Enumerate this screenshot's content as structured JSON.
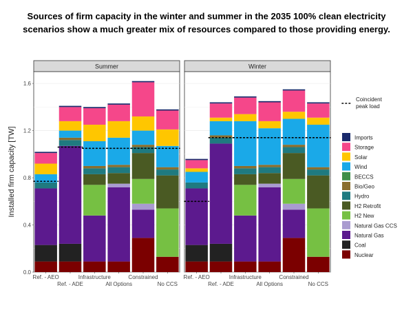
{
  "title": {
    "line1": "Sources of firm capacity in the winter and summer in the 2035 100% clean electricity",
    "line2": "scenarios show a much greater mix of resources compared to those providing energy."
  },
  "chart_data": {
    "type": "bar",
    "stacked": true,
    "ylabel": "Installed firm capacity [TW]",
    "ylim": [
      0,
      1.7
    ],
    "yticks": [
      "0.0",
      "0.4",
      "0.8",
      "1.2",
      "1.6"
    ],
    "categories": [
      "Ref. - AEO",
      "Ref. - ADE",
      "Infrastructure",
      "All Options",
      "Constrained",
      "No CCS"
    ],
    "legend": {
      "peak_label_line1": "Coincident",
      "peak_label_line2": "peak load",
      "order": [
        "Imports",
        "Storage",
        "Solar",
        "Wind",
        "BECCS",
        "Bio/Geo",
        "Hydro",
        "H2 Retrofit",
        "H2 New",
        "Natural Gas CCS",
        "Natural Gas",
        "Coal",
        "Nuclear"
      ],
      "placement": "right"
    },
    "colors": {
      "Nuclear": "#7b0000",
      "Coal": "#222222",
      "Natural Gas": "#5c1a8e",
      "Natural Gas CCS": "#a99bd0",
      "H2 New": "#76c043",
      "H2 Retrofit": "#4a5a23",
      "Hydro": "#1f7a80",
      "Bio/Geo": "#8a6e2e",
      "BECCS": "#3e8e49",
      "Wind": "#1aa9e8",
      "Solar": "#ffc600",
      "Storage": "#f5478a",
      "Imports": "#1a2a6c"
    },
    "panels": [
      {
        "name": "Summer",
        "peak_load": [
          0.77,
          1.06,
          1.05,
          1.05,
          1.05,
          1.05
        ],
        "series": [
          {
            "name": "Nuclear",
            "values": [
              0.09,
              0.09,
              0.09,
              0.09,
              0.29,
              0.13
            ]
          },
          {
            "name": "Coal",
            "values": [
              0.14,
              0.15,
              0.0,
              0.0,
              0.0,
              0.0
            ]
          },
          {
            "name": "Natural Gas",
            "values": [
              0.48,
              0.83,
              0.39,
              0.63,
              0.24,
              0.0
            ]
          },
          {
            "name": "Natural Gas CCS",
            "values": [
              0.0,
              0.0,
              0.0,
              0.03,
              0.05,
              0.0
            ]
          },
          {
            "name": "H2 New",
            "values": [
              0.0,
              0.0,
              0.26,
              0.0,
              0.21,
              0.41
            ]
          },
          {
            "name": "H2 Retrofit",
            "values": [
              0.0,
              0.0,
              0.09,
              0.09,
              0.22,
              0.28
            ]
          },
          {
            "name": "Hydro",
            "values": [
              0.05,
              0.05,
              0.05,
              0.05,
              0.05,
              0.05
            ]
          },
          {
            "name": "Bio/Geo",
            "values": [
              0.0,
              0.02,
              0.02,
              0.02,
              0.02,
              0.02
            ]
          },
          {
            "name": "BECCS",
            "values": [
              0.0,
              0.0,
              0.0,
              0.0,
              0.0,
              0.0
            ]
          },
          {
            "name": "Wind",
            "values": [
              0.07,
              0.06,
              0.21,
              0.23,
              0.12,
              0.18
            ]
          },
          {
            "name": "Solar",
            "values": [
              0.09,
              0.08,
              0.14,
              0.14,
              0.12,
              0.14
            ]
          },
          {
            "name": "Storage",
            "values": [
              0.09,
              0.12,
              0.14,
              0.14,
              0.29,
              0.16
            ]
          },
          {
            "name": "Imports",
            "values": [
              0.01,
              0.01,
              0.01,
              0.01,
              0.01,
              0.01
            ]
          }
        ]
      },
      {
        "name": "Winter",
        "peak_load": [
          0.6,
          1.14,
          1.14,
          1.14,
          1.14,
          1.14
        ],
        "series": [
          {
            "name": "Nuclear",
            "values": [
              0.09,
              0.09,
              0.09,
              0.09,
              0.29,
              0.13
            ]
          },
          {
            "name": "Coal",
            "values": [
              0.14,
              0.15,
              0.0,
              0.0,
              0.0,
              0.0
            ]
          },
          {
            "name": "Natural Gas",
            "values": [
              0.48,
              0.85,
              0.39,
              0.63,
              0.24,
              0.0
            ]
          },
          {
            "name": "Natural Gas CCS",
            "values": [
              0.0,
              0.0,
              0.0,
              0.03,
              0.05,
              0.0
            ]
          },
          {
            "name": "H2 New",
            "values": [
              0.0,
              0.0,
              0.26,
              0.0,
              0.21,
              0.41
            ]
          },
          {
            "name": "H2 Retrofit",
            "values": [
              0.0,
              0.0,
              0.09,
              0.09,
              0.22,
              0.28
            ]
          },
          {
            "name": "Hydro",
            "values": [
              0.05,
              0.05,
              0.05,
              0.05,
              0.05,
              0.05
            ]
          },
          {
            "name": "Bio/Geo",
            "values": [
              0.0,
              0.02,
              0.02,
              0.02,
              0.02,
              0.02
            ]
          },
          {
            "name": "BECCS",
            "values": [
              0.0,
              0.0,
              0.0,
              0.0,
              0.0,
              0.0
            ]
          },
          {
            "name": "Wind",
            "values": [
              0.09,
              0.12,
              0.38,
              0.31,
              0.22,
              0.36
            ]
          },
          {
            "name": "Solar",
            "values": [
              0.03,
              0.03,
              0.06,
              0.06,
              0.06,
              0.06
            ]
          },
          {
            "name": "Storage",
            "values": [
              0.07,
              0.12,
              0.14,
              0.16,
              0.18,
              0.12
            ]
          },
          {
            "name": "Imports",
            "values": [
              0.01,
              0.01,
              0.01,
              0.01,
              0.01,
              0.01
            ]
          }
        ]
      }
    ]
  }
}
